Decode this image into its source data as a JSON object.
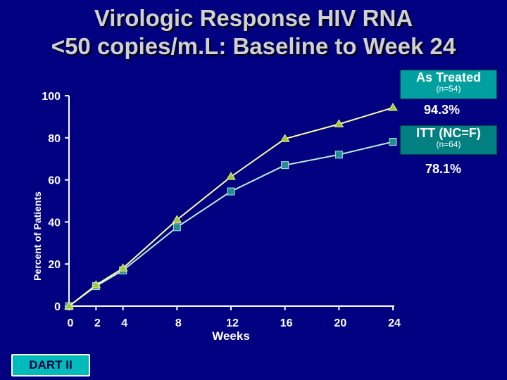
{
  "title": {
    "line1": "Virologic Response HIV RNA",
    "line2": "<50 copies/m.L: Baseline to Week 24"
  },
  "badge": "DART II",
  "colors": {
    "background": "#000080",
    "as_treated_line": "#ffffaa",
    "as_treated_marker": "#a4c832",
    "itt_line": "#bbeedd",
    "itt_marker": "#1e9090",
    "legend_bg": "#00a0a0"
  },
  "chart_data": {
    "type": "line",
    "xlabel": "Weeks",
    "ylabel": "Percent of Patients",
    "xlim": [
      0,
      24
    ],
    "ylim": [
      0,
      100
    ],
    "x_ticks": [
      "0",
      "2",
      "4",
      "8",
      "12",
      "16",
      "20",
      "24"
    ],
    "y_ticks": [
      "0",
      "20",
      "40",
      "60",
      "80",
      "100"
    ],
    "series": [
      {
        "name": "As Treated",
        "n_label": "(n=54)",
        "end_label": "94.3%",
        "marker": "triangle",
        "x": [
          0,
          2,
          4,
          8,
          12,
          16,
          20,
          24
        ],
        "y": [
          0,
          10,
          18,
          41,
          61.5,
          79.5,
          86.5,
          94.3
        ]
      },
      {
        "name": "ITT (NC=F)",
        "n_label": "(n=64)",
        "end_label": "78.1%",
        "marker": "square",
        "x": [
          0,
          2,
          4,
          8,
          12,
          16,
          20,
          24
        ],
        "y": [
          0,
          9.5,
          17,
          37.5,
          54.5,
          67,
          72,
          78.1
        ]
      }
    ]
  }
}
